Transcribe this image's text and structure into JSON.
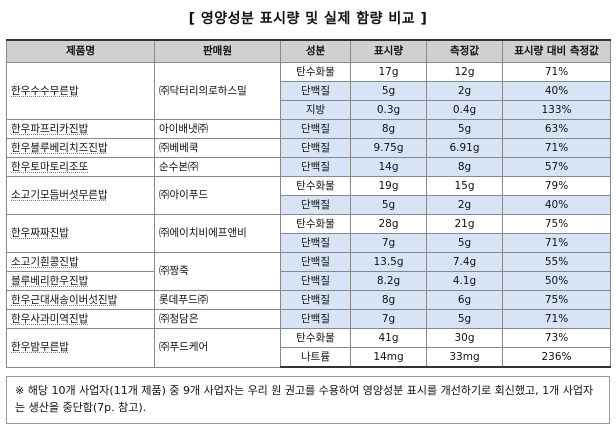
{
  "title": "[ 영양성분 표시량 및 실제 함량 비교 ]",
  "headers": [
    "제품명",
    "판매원",
    "성분",
    "표시량",
    "측정값",
    "표시량 대비 측정값"
  ],
  "rows": [
    {
      "product": "한우수수무른밥",
      "seller": "㈜닥터리의로하스밀",
      "items": [
        {
          "nutrient": "탄수화물",
          "label": "17g",
          "measured": "12g",
          "ratio": "71%",
          "hl": false
        },
        {
          "nutrient": "단백질",
          "label": "5g",
          "measured": "2g",
          "ratio": "40%",
          "hl": true
        },
        {
          "nutrient": "지방",
          "label": "0.3g",
          "measured": "0.4g",
          "ratio": "133%",
          "hl": true
        }
      ]
    },
    {
      "product": "한우파프리카진밥",
      "seller": "아이배냇㈜",
      "items": [
        {
          "nutrient": "단백질",
          "label": "8g",
          "measured": "5g",
          "ratio": "63%",
          "hl": true
        }
      ]
    },
    {
      "product": "한우블루베리치즈진밥",
      "seller": "㈜베베쿡",
      "items": [
        {
          "nutrient": "단백질",
          "label": "9.75g",
          "measured": "6.91g",
          "ratio": "71%",
          "hl": true
        }
      ]
    },
    {
      "product": "한우토마토리조또",
      "seller": "순수본㈜",
      "items": [
        {
          "nutrient": "단백질",
          "label": "14g",
          "measured": "8g",
          "ratio": "57%",
          "hl": true
        }
      ]
    },
    {
      "product": "소고기모듬버섯무른밥",
      "seller": "㈜아이푸드",
      "items": [
        {
          "nutrient": "탄수화물",
          "label": "19g",
          "measured": "15g",
          "ratio": "79%",
          "hl": false
        },
        {
          "nutrient": "단백질",
          "label": "5g",
          "measured": "2g",
          "ratio": "40%",
          "hl": true
        }
      ]
    },
    {
      "product": "한우짜짜진밥",
      "seller": "㈜에이치비에프앤비",
      "items": [
        {
          "nutrient": "탄수화물",
          "label": "28g",
          "measured": "21g",
          "ratio": "75%",
          "hl": false
        },
        {
          "nutrient": "단백질",
          "label": "7g",
          "measured": "5g",
          "ratio": "71%",
          "hl": true
        }
      ]
    },
    {
      "product": "소고기흰콩진밥",
      "seller": "㈜짱죽",
      "sellerSpan": 2,
      "items": [
        {
          "nutrient": "단백질",
          "label": "13.5g",
          "measured": "7.4g",
          "ratio": "55%",
          "hl": true
        }
      ]
    },
    {
      "product": "블루베리한우진밥",
      "seller": null,
      "items": [
        {
          "nutrient": "단백질",
          "label": "8.2g",
          "measured": "4.1g",
          "ratio": "50%",
          "hl": true
        }
      ]
    },
    {
      "product": "한우근대새송이버섯진밥",
      "seller": "롯데푸드㈜",
      "items": [
        {
          "nutrient": "단백질",
          "label": "8g",
          "measured": "6g",
          "ratio": "75%",
          "hl": true
        }
      ]
    },
    {
      "product": "한우사과미역진밥",
      "seller": "㈜청담은",
      "items": [
        {
          "nutrient": "단백질",
          "label": "7g",
          "measured": "5g",
          "ratio": "71%",
          "hl": true
        }
      ]
    },
    {
      "product": "한우밤무른밥",
      "seller": "㈜푸드케어",
      "items": [
        {
          "nutrient": "탄수화물",
          "label": "41g",
          "measured": "30g",
          "ratio": "73%",
          "hl": false
        },
        {
          "nutrient": "나트륨",
          "label": "14mg",
          "measured": "33mg",
          "ratio": "236%",
          "hl": false
        }
      ]
    }
  ],
  "note": "※ 해당 10개 사업자(11개 제품) 중 9개 사업자는 우리 원 권고를 수용하여 영양성분 표시를 개선하기로 회신했고, 1개 사업자는 생산을 중단함(7p. 참고).",
  "colors": {
    "header_bg": "#d0d0d0",
    "highlight": "#d6e4f5"
  }
}
